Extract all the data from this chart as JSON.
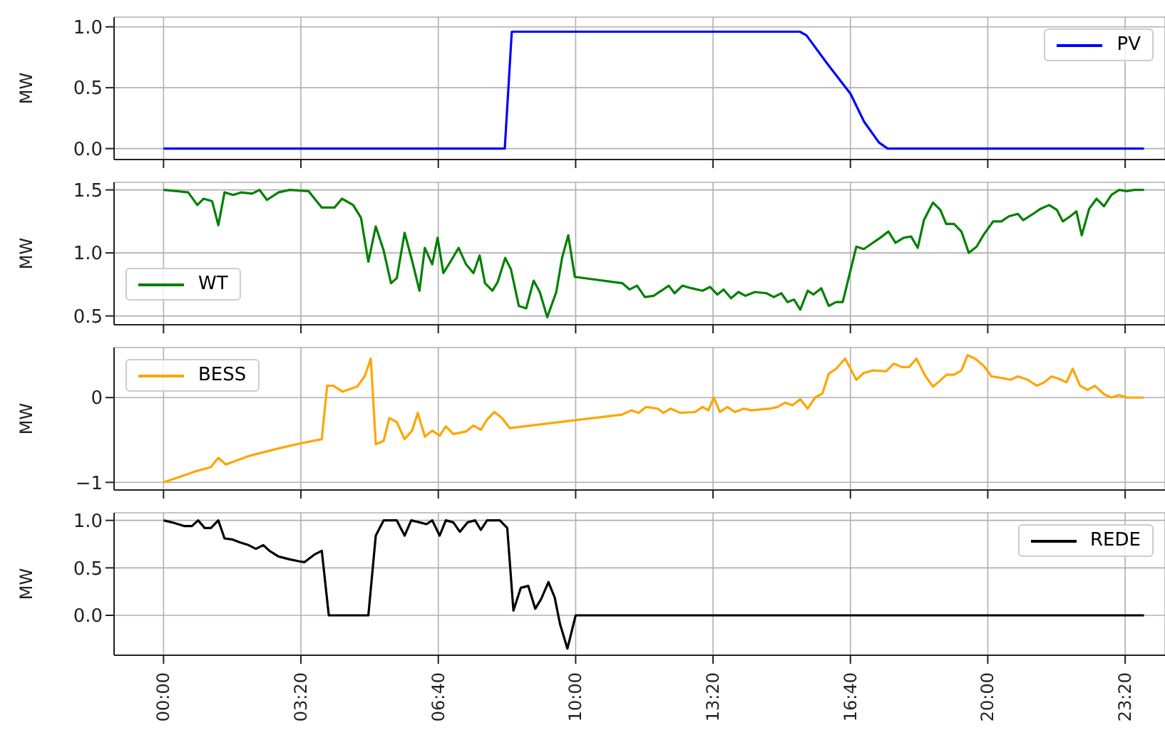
{
  "chart_data": [
    {
      "type": "line",
      "ylabel": "MW",
      "grid": true,
      "legend": "top right",
      "tick_labels": "y",
      "xlim": [
        -1.2,
        24.3
      ],
      "xticks": [
        {
          "value": 0,
          "label": null
        },
        {
          "value": 3.3333,
          "label": null
        },
        {
          "value": 6.6667,
          "label": null
        },
        {
          "value": 10,
          "label": null
        },
        {
          "value": 13.3333,
          "label": null
        },
        {
          "value": 16.6667,
          "label": null
        },
        {
          "value": 20,
          "label": null
        },
        {
          "value": 23.3333,
          "label": null
        }
      ],
      "ylim": [
        -0.09,
        1.08
      ],
      "yticks": [
        {
          "value": 0,
          "label": "0.0"
        },
        {
          "value": 0.5,
          "label": "0.5"
        },
        {
          "value": 1,
          "label": "1.0"
        }
      ],
      "x": [
        0,
        8.28,
        8.45,
        15.44,
        15.6,
        16.1,
        16.67,
        17.0,
        17.36,
        17.57,
        23.79
      ],
      "series": [
        {
          "name": "PV",
          "color": "#0000ff",
          "values": [
            0,
            0,
            0.96,
            0.96,
            0.93,
            0.7,
            0.45,
            0.22,
            0.05,
            0,
            0
          ]
        }
      ]
    },
    {
      "type": "line",
      "ylabel": "MW",
      "grid": true,
      "legend": "bottom left",
      "tick_labels": "y",
      "xlim": [
        -1.2,
        24.3
      ],
      "xticks": [
        {
          "value": 0,
          "label": null
        },
        {
          "value": 3.3333,
          "label": null
        },
        {
          "value": 6.6667,
          "label": null
        },
        {
          "value": 10,
          "label": null
        },
        {
          "value": 13.3333,
          "label": null
        },
        {
          "value": 16.6667,
          "label": null
        },
        {
          "value": 20,
          "label": null
        },
        {
          "value": 23.3333,
          "label": null
        }
      ],
      "ylim": [
        0.43,
        1.56
      ],
      "yticks": [
        {
          "value": 0.5,
          "label": "0.5"
        },
        {
          "value": 1,
          "label": "1.0"
        },
        {
          "value": 1.5,
          "label": "1.5"
        }
      ],
      "x": [
        0,
        0.33,
        0.6,
        0.82,
        0.97,
        1.18,
        1.33,
        1.48,
        1.69,
        1.88,
        2.15,
        2.33,
        2.51,
        2.79,
        3.06,
        3.52,
        3.84,
        4.15,
        4.33,
        4.6,
        4.79,
        4.97,
        5.15,
        5.34,
        5.52,
        5.66,
        5.85,
        6.03,
        6.21,
        6.34,
        6.52,
        6.65,
        6.79,
        6.98,
        7.16,
        7.34,
        7.52,
        7.67,
        7.8,
        7.98,
        8.11,
        8.29,
        8.43,
        8.62,
        8.8,
        8.98,
        9.13,
        9.31,
        9.53,
        9.67,
        9.82,
        9.98,
        11.13,
        11.31,
        11.49,
        11.68,
        11.89,
        12.08,
        12.26,
        12.4,
        12.59,
        12.81,
        13.08,
        13.26,
        13.44,
        13.59,
        13.77,
        13.95,
        14.12,
        14.35,
        14.63,
        14.81,
        14.99,
        15.14,
        15.3,
        15.45,
        15.63,
        15.77,
        15.96,
        16.14,
        16.32,
        16.48,
        16.81,
        16.99,
        17.21,
        17.39,
        17.59,
        17.76,
        17.96,
        18.14,
        18.3,
        18.45,
        18.67,
        18.85,
        18.99,
        19.18,
        19.36,
        19.54,
        19.73,
        19.89,
        20.13,
        20.33,
        20.51,
        20.73,
        20.86,
        21.1,
        21.28,
        21.49,
        21.68,
        21.82,
        22.0,
        22.15,
        22.28,
        22.46,
        22.64,
        22.82,
        23.0,
        23.19,
        23.37,
        23.55,
        23.79
      ],
      "series": [
        {
          "name": "WT",
          "color": "#008000",
          "values": [
            1.5,
            1.49,
            1.48,
            1.38,
            1.43,
            1.41,
            1.22,
            1.48,
            1.46,
            1.48,
            1.47,
            1.5,
            1.42,
            1.48,
            1.5,
            1.49,
            1.36,
            1.36,
            1.43,
            1.38,
            1.28,
            0.93,
            1.21,
            1.02,
            0.76,
            0.8,
            1.16,
            0.94,
            0.7,
            1.04,
            0.91,
            1.12,
            0.84,
            0.94,
            1.04,
            0.91,
            0.84,
            0.98,
            0.76,
            0.7,
            0.77,
            0.96,
            0.87,
            0.58,
            0.56,
            0.78,
            0.69,
            0.49,
            0.69,
            0.96,
            1.14,
            0.81,
            0.76,
            0.71,
            0.74,
            0.65,
            0.66,
            0.7,
            0.74,
            0.68,
            0.74,
            0.72,
            0.7,
            0.73,
            0.67,
            0.71,
            0.64,
            0.69,
            0.66,
            0.69,
            0.68,
            0.65,
            0.68,
            0.61,
            0.63,
            0.55,
            0.7,
            0.67,
            0.72,
            0.58,
            0.61,
            0.61,
            1.05,
            1.03,
            1.08,
            1.12,
            1.17,
            1.08,
            1.12,
            1.13,
            1.04,
            1.26,
            1.4,
            1.34,
            1.23,
            1.23,
            1.17,
            1.0,
            1.05,
            1.14,
            1.25,
            1.25,
            1.29,
            1.31,
            1.26,
            1.31,
            1.35,
            1.38,
            1.34,
            1.25,
            1.29,
            1.33,
            1.14,
            1.35,
            1.43,
            1.37,
            1.46,
            1.5,
            1.49,
            1.5,
            1.5
          ]
        }
      ]
    },
    {
      "type": "line",
      "ylabel": "MW",
      "grid": true,
      "legend": "top left",
      "tick_labels": "y",
      "xlim": [
        -1.2,
        24.3
      ],
      "xticks": [
        {
          "value": 0,
          "label": null
        },
        {
          "value": 3.3333,
          "label": null
        },
        {
          "value": 6.6667,
          "label": null
        },
        {
          "value": 10,
          "label": null
        },
        {
          "value": 13.3333,
          "label": null
        },
        {
          "value": 16.6667,
          "label": null
        },
        {
          "value": 20,
          "label": null
        },
        {
          "value": 23.3333,
          "label": null
        }
      ],
      "ylim": [
        -1.09,
        0.59
      ],
      "yticks": [
        {
          "value": -1,
          "label": "−1"
        },
        {
          "value": 0,
          "label": "0"
        }
      ],
      "x": [
        0,
        0.42,
        0.78,
        1.15,
        1.33,
        1.51,
        2.06,
        2.79,
        3.33,
        3.84,
        3.97,
        4.12,
        4.34,
        4.7,
        4.88,
        5.03,
        5.15,
        5.34,
        5.48,
        5.66,
        5.85,
        6.03,
        6.17,
        6.34,
        6.52,
        6.7,
        6.85,
        7.03,
        7.34,
        7.52,
        7.7,
        7.85,
        8.03,
        8.21,
        8.4,
        11.13,
        11.35,
        11.53,
        11.71,
        11.99,
        12.13,
        12.31,
        12.53,
        12.9,
        13.08,
        13.22,
        13.35,
        13.5,
        13.68,
        13.86,
        14.08,
        14.26,
        14.72,
        14.9,
        15.08,
        15.26,
        15.45,
        15.63,
        15.81,
        15.99,
        16.14,
        16.32,
        16.54,
        16.81,
        16.99,
        17.21,
        17.53,
        17.72,
        17.91,
        18.09,
        18.27,
        18.49,
        18.67,
        18.82,
        19.0,
        19.18,
        19.36,
        19.51,
        19.69,
        19.91,
        20.09,
        20.36,
        20.55,
        20.73,
        20.97,
        21.19,
        21.37,
        21.55,
        21.73,
        21.91,
        22.06,
        22.24,
        22.42,
        22.6,
        22.82,
        23.0,
        23.19,
        23.37,
        23.79
      ],
      "series": [
        {
          "name": "BESS",
          "color": "#ffa500",
          "values": [
            -1.0,
            -0.93,
            -0.87,
            -0.82,
            -0.71,
            -0.79,
            -0.69,
            -0.6,
            -0.54,
            -0.49,
            0.14,
            0.14,
            0.07,
            0.13,
            0.25,
            0.46,
            -0.55,
            -0.51,
            -0.24,
            -0.29,
            -0.49,
            -0.39,
            -0.18,
            -0.46,
            -0.39,
            -0.45,
            -0.34,
            -0.43,
            -0.4,
            -0.33,
            -0.38,
            -0.26,
            -0.17,
            -0.24,
            -0.36,
            -0.2,
            -0.15,
            -0.18,
            -0.11,
            -0.13,
            -0.18,
            -0.13,
            -0.18,
            -0.17,
            -0.11,
            -0.15,
            0.0,
            -0.17,
            -0.11,
            -0.17,
            -0.13,
            -0.15,
            -0.13,
            -0.11,
            -0.06,
            -0.09,
            -0.02,
            -0.13,
            0.0,
            0.05,
            0.28,
            0.34,
            0.46,
            0.21,
            0.29,
            0.32,
            0.31,
            0.4,
            0.36,
            0.36,
            0.46,
            0.25,
            0.13,
            0.19,
            0.27,
            0.27,
            0.32,
            0.5,
            0.46,
            0.37,
            0.25,
            0.23,
            0.21,
            0.25,
            0.21,
            0.14,
            0.18,
            0.25,
            0.22,
            0.18,
            0.34,
            0.14,
            0.09,
            0.14,
            0.04,
            0.0,
            0.03,
            0.0,
            0.0
          ]
        }
      ]
    },
    {
      "type": "line",
      "ylabel": "MW",
      "grid": true,
      "legend": "top right",
      "xlim": [
        -1.2,
        24.3
      ],
      "xticks": [
        {
          "value": 0,
          "label": "00:00"
        },
        {
          "value": 3.3333,
          "label": "03:20"
        },
        {
          "value": 6.6667,
          "label": "06:40"
        },
        {
          "value": 10,
          "label": "10:00"
        },
        {
          "value": 13.3333,
          "label": "13:20"
        },
        {
          "value": 16.6667,
          "label": "16:40"
        },
        {
          "value": 20,
          "label": "20:00"
        },
        {
          "value": 23.3333,
          "label": "23:20"
        }
      ],
      "ylim": [
        -0.42,
        1.08
      ],
      "yticks": [
        {
          "value": 0,
          "label": "0.0"
        },
        {
          "value": 0.5,
          "label": "0.5"
        },
        {
          "value": 1,
          "label": "1.0"
        }
      ],
      "x": [
        0,
        0.2,
        0.51,
        0.69,
        0.84,
        1.0,
        1.15,
        1.33,
        1.48,
        1.66,
        1.84,
        2.06,
        2.24,
        2.42,
        2.57,
        2.79,
        3.06,
        3.28,
        3.42,
        3.66,
        3.84,
        4.01,
        4.97,
        5.15,
        5.34,
        5.66,
        5.85,
        6.01,
        6.21,
        6.38,
        6.52,
        6.7,
        6.85,
        7.03,
        7.19,
        7.38,
        7.56,
        7.7,
        7.85,
        8.16,
        8.34,
        8.49,
        8.67,
        8.85,
        9.02,
        9.16,
        9.34,
        9.49,
        9.62,
        9.8,
        10.0,
        23.79
      ],
      "series": [
        {
          "name": "REDE",
          "color": "#000000",
          "values": [
            1.0,
            0.98,
            0.94,
            0.94,
            1.0,
            0.92,
            0.92,
            1.0,
            0.81,
            0.8,
            0.77,
            0.74,
            0.7,
            0.74,
            0.68,
            0.62,
            0.59,
            0.57,
            0.56,
            0.64,
            0.68,
            0.0,
            0.0,
            0.84,
            1.0,
            1.0,
            0.84,
            1.0,
            0.98,
            0.96,
            1.0,
            0.84,
            1.0,
            0.98,
            0.88,
            0.98,
            1.0,
            0.9,
            1.0,
            1.0,
            0.92,
            0.05,
            0.29,
            0.31,
            0.07,
            0.17,
            0.35,
            0.19,
            -0.09,
            -0.35,
            0.0,
            0.0
          ]
        }
      ]
    }
  ]
}
